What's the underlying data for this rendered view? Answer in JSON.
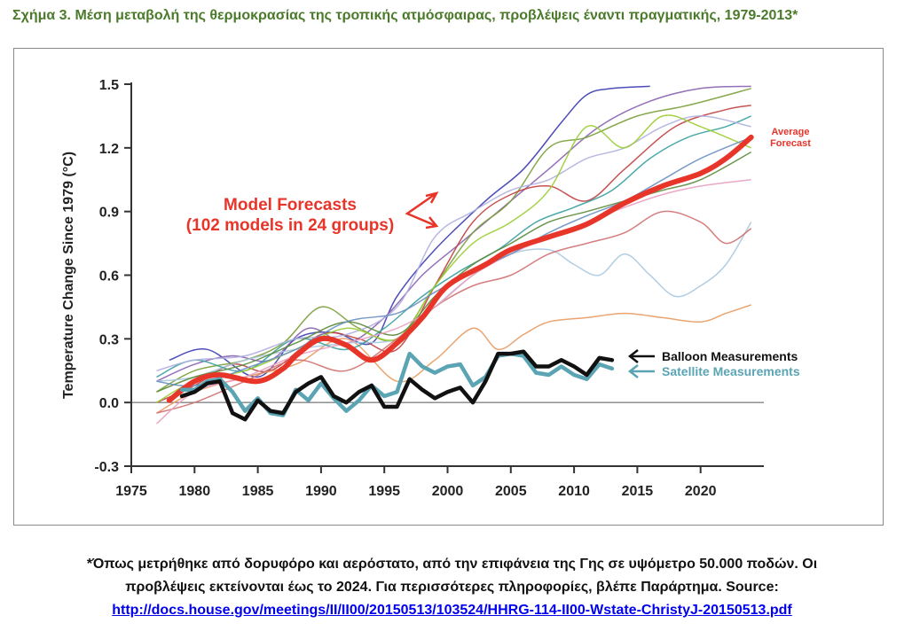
{
  "figure_title": "Σχήμα 3. Μέση μεταβολή της θερμοκρασίας της τροπικής ατμόσφαιρας, προβλέψεις έναντι πραγματικής, 1979-2013*",
  "footnote": {
    "line1": "*Όπως μετρήθηκε από δορυφόρο και αερόστατο, από την επιφάνεια της Γης σε υψόμετρο 50.000 ποδών. Οι",
    "line2": "προβλέψεις εκτείνονται έως το 2024. Για περισσότερες πληροφορίες, βλέπε Παράρτημα. Source:",
    "link": "http://docs.house.gov/meetings/II/II00/20150513/103524/HHRG-114-II00-Wstate-ChristyJ-20150513.pdf"
  },
  "colors": {
    "average": "#e8352a",
    "balloon": "#111111",
    "satellite": "#5aa4b4",
    "axis": "#333333",
    "title": "#4a7a2a"
  },
  "chart_data": {
    "type": "line",
    "ylabel": "Temperature Change Since 1979 (°C)",
    "xlabel": "",
    "xlim": [
      1975,
      2025
    ],
    "ylim": [
      -0.3,
      1.5
    ],
    "xticks": [
      "1975",
      "1980",
      "1985",
      "1990",
      "1995",
      "2000",
      "2005",
      "2010",
      "2015",
      "2020"
    ],
    "yticks": [
      "-0.3",
      "0.0",
      "0.3",
      "0.6",
      "0.9",
      "1.2",
      "1.5"
    ],
    "annotations": {
      "model_forecasts_line1": "Model Forecasts",
      "model_forecasts_line2": "(102 models in 24 groups)",
      "average_line1": "Average",
      "average_line2": "Forecast",
      "balloon": "Balloon Measurements",
      "satellite": "Satellite Measurements"
    },
    "series": [
      {
        "name": "Average Forecast",
        "x": [
          1978,
          1980,
          1982,
          1985,
          1987,
          1988,
          1990,
          1992,
          1994,
          1996,
          1998,
          2000,
          2003,
          2005,
          2008,
          2011,
          2014,
          2017,
          2020,
          2022,
          2024
        ],
        "values": [
          0.01,
          0.1,
          0.13,
          0.1,
          0.16,
          0.22,
          0.3,
          0.27,
          0.2,
          0.28,
          0.4,
          0.55,
          0.65,
          0.72,
          0.78,
          0.84,
          0.94,
          1.02,
          1.08,
          1.15,
          1.25
        ]
      },
      {
        "name": "Balloon Measurements",
        "x": [
          1979,
          1980,
          1981,
          1982,
          1983,
          1984,
          1985,
          1986,
          1987,
          1988,
          1989,
          1990,
          1991,
          1992,
          1993,
          1994,
          1995,
          1996,
          1997,
          1998,
          1999,
          2000,
          2001,
          2002,
          2003,
          2004,
          2005,
          2006,
          2007,
          2008,
          2009,
          2010,
          2011,
          2012,
          2013
        ],
        "values": [
          0.03,
          0.05,
          0.09,
          0.1,
          -0.05,
          -0.08,
          0.01,
          -0.04,
          -0.05,
          0.05,
          0.09,
          0.12,
          0.03,
          0.0,
          0.05,
          0.08,
          -0.02,
          -0.02,
          0.11,
          0.06,
          0.02,
          0.05,
          0.07,
          0.0,
          0.1,
          0.23,
          0.23,
          0.24,
          0.17,
          0.17,
          0.2,
          0.17,
          0.13,
          0.21,
          0.2
        ]
      },
      {
        "name": "Satellite Measurements",
        "x": [
          1979,
          1980,
          1981,
          1982,
          1983,
          1984,
          1985,
          1986,
          1987,
          1988,
          1989,
          1990,
          1991,
          1992,
          1993,
          1994,
          1995,
          1996,
          1997,
          1998,
          1999,
          2000,
          2001,
          2002,
          2003,
          2004,
          2005,
          2006,
          2007,
          2008,
          2009,
          2010,
          2011,
          2012,
          2013
        ],
        "values": [
          0.06,
          0.06,
          0.1,
          0.11,
          0.05,
          -0.04,
          0.02,
          -0.05,
          -0.06,
          0.06,
          0.01,
          0.09,
          0.02,
          -0.04,
          0.01,
          0.08,
          0.03,
          0.05,
          0.23,
          0.17,
          0.14,
          0.17,
          0.18,
          0.08,
          0.12,
          0.22,
          0.23,
          0.22,
          0.14,
          0.13,
          0.17,
          0.13,
          0.11,
          0.18,
          0.16
        ]
      }
    ],
    "model_runs": [
      {
        "color": "#3a3ab0",
        "x": [
          1978,
          1981,
          1985,
          1988,
          1991,
          1994,
          1996,
          1999,
          2003,
          2006,
          2009,
          2011,
          2013,
          2016
        ],
        "values": [
          0.2,
          0.25,
          0.12,
          0.3,
          0.33,
          0.28,
          0.5,
          0.72,
          0.95,
          1.1,
          1.32,
          1.45,
          1.48,
          1.49
        ]
      },
      {
        "color": "#8860b0",
        "x": [
          1977,
          1980,
          1983,
          1986,
          1989,
          1992,
          1995,
          1998,
          2001,
          2004,
          2008,
          2012,
          2016,
          2020,
          2024
        ],
        "values": [
          0.1,
          0.18,
          0.22,
          0.2,
          0.35,
          0.28,
          0.4,
          0.6,
          0.75,
          0.9,
          1.1,
          1.3,
          1.42,
          1.48,
          1.49
        ]
      },
      {
        "color": "#7a9e3a",
        "x": [
          1977,
          1980,
          1984,
          1987,
          1990,
          1993,
          1996,
          1999,
          2002,
          2005,
          2008,
          2011,
          2015,
          2019,
          2024
        ],
        "values": [
          0.05,
          0.15,
          0.2,
          0.28,
          0.45,
          0.35,
          0.3,
          0.55,
          0.8,
          0.95,
          1.2,
          1.25,
          1.35,
          1.4,
          1.48
        ]
      },
      {
        "color": "#c04040",
        "x": [
          1977,
          1980,
          1983,
          1986,
          1990,
          1993,
          1996,
          1999,
          2002,
          2005,
          2008,
          2011,
          2014,
          2018,
          2022,
          2024
        ],
        "values": [
          0.0,
          0.08,
          0.18,
          0.15,
          0.32,
          0.3,
          0.25,
          0.55,
          0.85,
          0.98,
          1.02,
          0.95,
          1.1,
          1.3,
          1.38,
          1.4
        ]
      },
      {
        "color": "#e89a60",
        "x": [
          1977,
          1980,
          1984,
          1988,
          1992,
          1996,
          1999,
          2002,
          2004,
          2006,
          2008,
          2011,
          2014,
          2017,
          2020,
          2022,
          2024
        ],
        "values": [
          -0.05,
          0.05,
          0.12,
          0.18,
          0.3,
          0.1,
          0.2,
          0.35,
          0.25,
          0.32,
          0.38,
          0.4,
          0.42,
          0.4,
          0.38,
          0.42,
          0.46
        ]
      },
      {
        "color": "#a8c8e0",
        "x": [
          1977,
          1980,
          1984,
          1988,
          1992,
          1996,
          1999,
          2002,
          2005,
          2008,
          2010,
          2012,
          2014,
          2016,
          2018,
          2020,
          2022,
          2024
        ],
        "values": [
          0.1,
          0.12,
          0.2,
          0.25,
          0.28,
          0.3,
          0.45,
          0.6,
          0.7,
          0.72,
          0.65,
          0.6,
          0.7,
          0.6,
          0.5,
          0.55,
          0.65,
          0.85
        ]
      },
      {
        "color": "#3aa0a0",
        "x": [
          1977,
          1980,
          1984,
          1988,
          1992,
          1995,
          1998,
          2001,
          2004,
          2007,
          2010,
          2013,
          2016,
          2019,
          2022,
          2024
        ],
        "values": [
          0.12,
          0.2,
          0.15,
          0.3,
          0.25,
          0.35,
          0.5,
          0.62,
          0.72,
          0.85,
          0.92,
          1.0,
          1.15,
          1.25,
          1.3,
          1.35
        ]
      },
      {
        "color": "#b0b0e0",
        "x": [
          1977,
          1980,
          1984,
          1988,
          1992,
          1996,
          1999,
          2002,
          2005,
          2008,
          2011,
          2014,
          2017,
          2020,
          2024
        ],
        "values": [
          0.15,
          0.2,
          0.22,
          0.3,
          0.32,
          0.45,
          0.78,
          0.9,
          1.0,
          1.05,
          1.15,
          1.2,
          1.3,
          1.35,
          1.3
        ]
      },
      {
        "color": "#9acd32",
        "x": [
          1977,
          1980,
          1984,
          1988,
          1992,
          1996,
          1999,
          2002,
          2005,
          2008,
          2011,
          2014,
          2017,
          2020,
          2024
        ],
        "values": [
          0.0,
          0.1,
          0.15,
          0.25,
          0.35,
          0.3,
          0.55,
          0.75,
          0.85,
          1.0,
          1.3,
          1.2,
          1.35,
          1.3,
          1.2
        ]
      },
      {
        "color": "#d07070",
        "x": [
          1977,
          1980,
          1984,
          1988,
          1992,
          1996,
          1999,
          2002,
          2005,
          2008,
          2011,
          2014,
          2017,
          2020,
          2022,
          2024
        ],
        "values": [
          -0.05,
          0.0,
          0.1,
          0.2,
          0.15,
          0.3,
          0.45,
          0.55,
          0.6,
          0.7,
          0.75,
          0.8,
          0.9,
          0.85,
          0.75,
          0.82
        ]
      },
      {
        "color": "#5a8a3a",
        "x": [
          1977,
          1980,
          1984,
          1988,
          1992,
          1996,
          1999,
          2002,
          2005,
          2008,
          2011,
          2014,
          2017,
          2020,
          2024
        ],
        "values": [
          0.05,
          0.12,
          0.18,
          0.28,
          0.38,
          0.32,
          0.5,
          0.65,
          0.75,
          0.85,
          0.9,
          0.95,
          1.0,
          1.05,
          1.18
        ]
      },
      {
        "color": "#e8a0c0",
        "x": [
          1977,
          1980,
          1984,
          1988,
          1992,
          1996,
          1999,
          2002,
          2005,
          2008,
          2011,
          2014,
          2017,
          2020,
          2024
        ],
        "values": [
          -0.1,
          0.05,
          0.12,
          0.22,
          0.28,
          0.35,
          0.45,
          0.6,
          0.7,
          0.78,
          0.85,
          0.92,
          0.98,
          1.02,
          1.05
        ]
      },
      {
        "color": "#6a90c0",
        "x": [
          1977,
          1980,
          1984,
          1988,
          1992,
          1996,
          1999,
          2002,
          2005,
          2008,
          2011,
          2014,
          2017,
          2020,
          2024
        ],
        "values": [
          0.1,
          0.08,
          0.16,
          0.25,
          0.38,
          0.42,
          0.52,
          0.62,
          0.7,
          0.8,
          0.88,
          0.95,
          1.05,
          1.15,
          1.25
        ]
      }
    ]
  }
}
